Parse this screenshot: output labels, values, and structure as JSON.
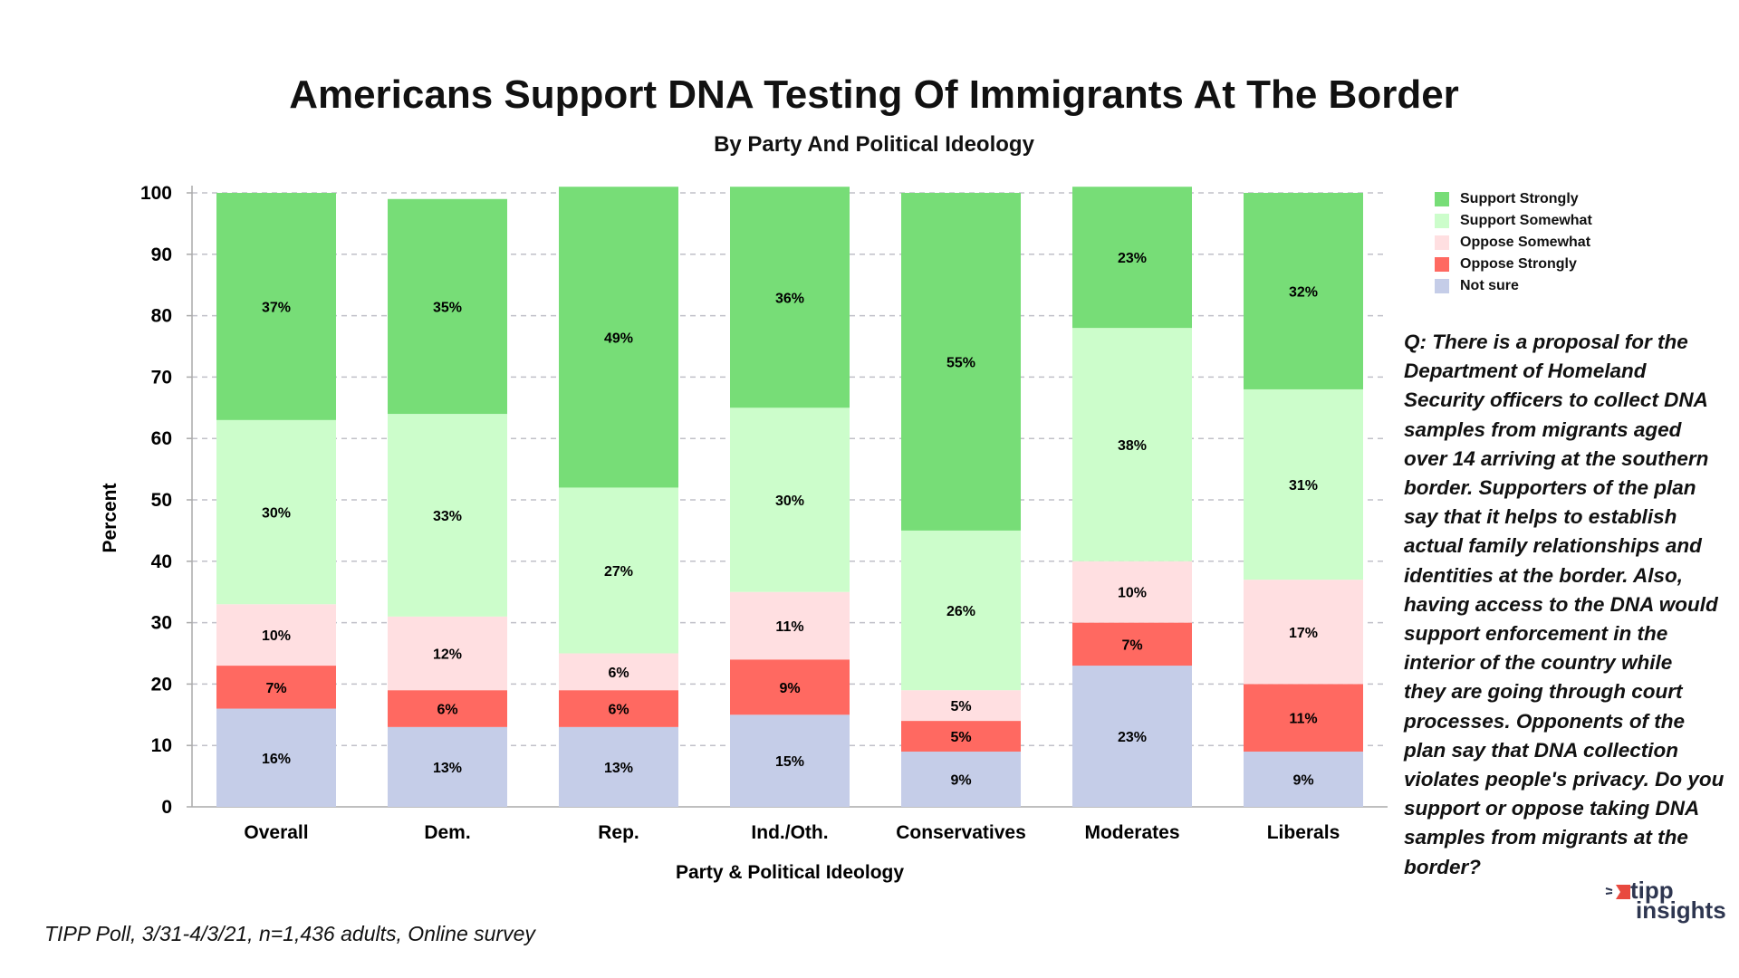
{
  "chart_data": {
    "type": "bar",
    "stacked": true,
    "title": "Americans Support DNA Testing Of Immigrants At The Border",
    "subtitle": "By Party And Political Ideology",
    "xlabel": "Party & Political Ideology",
    "ylabel": "Percent",
    "ylim": [
      0,
      100
    ],
    "yticks": [
      0,
      10,
      20,
      30,
      40,
      50,
      60,
      70,
      80,
      90,
      100
    ],
    "grid": true,
    "legend_position": "right",
    "categories": [
      "Overall",
      "Dem.",
      "Rep.",
      "Ind./Oth.",
      "Conservatives",
      "Moderates",
      "Liberals"
    ],
    "series": [
      {
        "name": "Not sure",
        "color": "#c5cde8",
        "values": [
          16,
          13,
          13,
          15,
          9,
          23,
          9
        ]
      },
      {
        "name": "Oppose Strongly",
        "color": "#ff6961",
        "values": [
          7,
          6,
          6,
          9,
          5,
          7,
          11
        ]
      },
      {
        "name": "Oppose Somewhat",
        "color": "#ffdfe1",
        "values": [
          10,
          12,
          6,
          11,
          5,
          10,
          17
        ]
      },
      {
        "name": "Support Somewhat",
        "color": "#ccfdcb",
        "values": [
          30,
          33,
          27,
          30,
          26,
          38,
          31
        ]
      },
      {
        "name": "Support Strongly",
        "color": "#77dd77",
        "values": [
          37,
          35,
          49,
          36,
          55,
          23,
          32
        ]
      }
    ],
    "legend_order": [
      "Support Strongly",
      "Support Somewhat",
      "Oppose Somewhat",
      "Oppose Strongly",
      "Not sure"
    ]
  },
  "question_lines": [
    "Q: There is a proposal for the",
    "Department of Homeland",
    "Security officers to collect DNA",
    "samples from migrants aged",
    "over 14 arriving at the southern",
    "border. Supporters of the plan",
    "say that it helps to establish",
    "actual family relationships and",
    "identities at the border. Also,",
    "having access to the DNA would",
    "support enforcement in the",
    "interior of the country while",
    "they are going through court",
    "processes. Opponents of the",
    "plan say that DNA collection",
    "violates people's privacy. Do you",
    "support or oppose taking DNA",
    "samples from migrants at the",
    "border?"
  ],
  "footer": "TIPP Poll, 3/31-4/3/21, n=1,436 adults, Online survey",
  "logo": {
    "line1": "tipp",
    "line2": "insights",
    "accent": "#e8493f"
  }
}
